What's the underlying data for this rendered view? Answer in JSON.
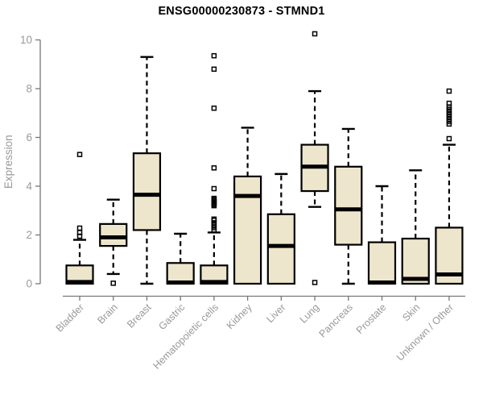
{
  "chart_data": {
    "type": "boxplot",
    "title": "ENSG00000230873 - STMND1",
    "ylabel": "Expression",
    "xlabel": "",
    "ylim": [
      0,
      10
    ],
    "yticks": [
      0,
      2,
      4,
      6,
      8,
      10
    ],
    "grid": false,
    "legend": "none",
    "categories": [
      "Bladder",
      "Brain",
      "Breast",
      "Gastric",
      "Hematopoietic cells",
      "Kidney",
      "Liver",
      "Lung",
      "Pancreas",
      "Prostate",
      "Skin",
      "Unknown / Other"
    ],
    "series": [
      {
        "name": "Bladder",
        "whisker_low": 0,
        "q1": 0,
        "median": 0.07,
        "q3": 0.75,
        "whisker_high": 1.8,
        "outliers": [
          1.95,
          2.1,
          2.28,
          5.3
        ]
      },
      {
        "name": "Brain",
        "whisker_low": 0.4,
        "q1": 1.55,
        "median": 1.9,
        "q3": 2.45,
        "whisker_high": 3.45,
        "outliers": [
          0.02
        ]
      },
      {
        "name": "Breast",
        "whisker_low": 0,
        "q1": 2.2,
        "median": 3.65,
        "q3": 5.35,
        "whisker_high": 9.3,
        "outliers": []
      },
      {
        "name": "Gastric",
        "whisker_low": 0,
        "q1": 0,
        "median": 0.05,
        "q3": 0.85,
        "whisker_high": 2.05,
        "outliers": []
      },
      {
        "name": "Hematopoietic cells",
        "whisker_low": 0,
        "q1": 0,
        "median": 0.07,
        "q3": 0.75,
        "whisker_high": 2.1,
        "outliers": [
          2.2,
          2.3,
          2.4,
          2.5,
          2.6,
          2.65,
          3.2,
          3.25,
          3.3,
          3.35,
          3.4,
          3.45,
          3.5,
          3.9,
          4.75,
          7.2,
          8.8,
          9.35
        ]
      },
      {
        "name": "Kidney",
        "whisker_low": 0,
        "q1": 0,
        "median": 3.6,
        "q3": 4.4,
        "whisker_high": 6.4,
        "outliers": []
      },
      {
        "name": "Liver",
        "whisker_low": 0,
        "q1": 0,
        "median": 1.55,
        "q3": 2.85,
        "whisker_high": 4.5,
        "outliers": []
      },
      {
        "name": "Lung",
        "whisker_low": 3.15,
        "q1": 3.8,
        "median": 4.8,
        "q3": 5.7,
        "whisker_high": 7.9,
        "outliers": [
          0.05,
          10.25
        ]
      },
      {
        "name": "Pancreas",
        "whisker_low": 0,
        "q1": 1.6,
        "median": 3.05,
        "q3": 4.8,
        "whisker_high": 6.35,
        "outliers": []
      },
      {
        "name": "Prostate",
        "whisker_low": 0,
        "q1": 0,
        "median": 0.05,
        "q3": 1.7,
        "whisker_high": 4.0,
        "outliers": []
      },
      {
        "name": "Skin",
        "whisker_low": 0,
        "q1": 0,
        "median": 0.2,
        "q3": 1.85,
        "whisker_high": 4.65,
        "outliers": []
      },
      {
        "name": "Unknown / Other",
        "whisker_low": 0,
        "q1": 0,
        "median": 0.38,
        "q3": 2.3,
        "whisker_high": 5.7,
        "outliers": [
          5.95,
          6.55,
          6.65,
          6.75,
          6.85,
          6.95,
          7.05,
          7.15,
          7.25,
          7.4,
          7.9
        ]
      }
    ],
    "colors": {
      "box_fill": "#EDE6CC",
      "box_border": "#000000",
      "median": "#000000",
      "whisker": "#000000",
      "outlier": "#000000",
      "axis_line": "#777777",
      "axis_text": "#999999",
      "title_text": "#000000",
      "background": "#ffffff"
    }
  }
}
